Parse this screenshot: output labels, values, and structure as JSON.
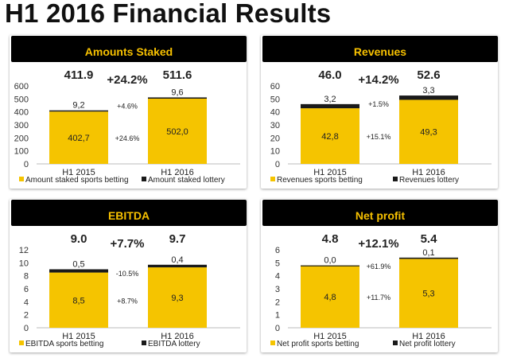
{
  "page": {
    "title": "H1 2016 Financial Results"
  },
  "colors": {
    "sports": "#f5c400",
    "lottery": "#1a1a1a",
    "header_bg": "#000000",
    "header_text": "#f7c100"
  },
  "panels": [
    {
      "id": "amounts-staked",
      "header": "Amounts Staked",
      "yticks": [
        "0",
        "100",
        "200",
        "300",
        "400",
        "500",
        "600"
      ],
      "ymax": 600,
      "bars": [
        {
          "label": "H1 2015",
          "total": "411.9",
          "sports": 402.7,
          "lottery": 9.2,
          "sports_label": "402,7",
          "lottery_label": "9,2"
        },
        {
          "label": "H1 2016",
          "total": "511.6",
          "sports": 502.0,
          "lottery": 9.6,
          "sports_label": "502,0",
          "lottery_label": "9,6"
        }
      ],
      "growth": "+24.2%",
      "lottery_change": "+4.6%",
      "sports_change": "+24.6%",
      "legend": [
        "Amount staked sports betting",
        "Amount staked lottery"
      ]
    },
    {
      "id": "revenues",
      "header": "Revenues",
      "yticks": [
        "0",
        "10",
        "20",
        "30",
        "40",
        "50",
        "60"
      ],
      "ymax": 60,
      "bars": [
        {
          "label": "H1 2015",
          "total": "46.0",
          "sports": 42.8,
          "lottery": 3.2,
          "sports_label": "42,8",
          "lottery_label": "3,2"
        },
        {
          "label": "H1 2016",
          "total": "52.6",
          "sports": 49.3,
          "lottery": 3.3,
          "sports_label": "49,3",
          "lottery_label": "3,3"
        }
      ],
      "growth": "+14.2%",
      "lottery_change": "+1.5%",
      "sports_change": "+15.1%",
      "legend": [
        "Revenues sports betting",
        "Revenues lottery"
      ]
    },
    {
      "id": "ebitda",
      "header": "EBITDA",
      "yticks": [
        "0",
        "2",
        "4",
        "6",
        "8",
        "10",
        "12"
      ],
      "ymax": 12,
      "bars": [
        {
          "label": "H1 2015",
          "total": "9.0",
          "sports": 8.5,
          "lottery": 0.5,
          "sports_label": "8,5",
          "lottery_label": "0,5"
        },
        {
          "label": "H1 2016",
          "total": "9.7",
          "sports": 9.3,
          "lottery": 0.4,
          "sports_label": "9,3",
          "lottery_label": "0,4"
        }
      ],
      "growth": "+7.7%",
      "lottery_change": "-10.5%",
      "sports_change": "+8.7%",
      "legend": [
        "EBITDA sports betting",
        "EBITDA lottery"
      ]
    },
    {
      "id": "net-profit",
      "header": "Net profit",
      "yticks": [
        "0",
        "1",
        "2",
        "3",
        "4",
        "5",
        "6"
      ],
      "ymax": 6,
      "bars": [
        {
          "label": "H1 2015",
          "total": "4.8",
          "sports": 4.8,
          "lottery": 0.0,
          "sports_label": "4,8",
          "lottery_label": "0,0"
        },
        {
          "label": "H1 2016",
          "total": "5.4",
          "sports": 5.3,
          "lottery": 0.1,
          "sports_label": "5,3",
          "lottery_label": "0,1"
        }
      ],
      "growth": "+12.1%",
      "lottery_change": "+61.9%",
      "sports_change": "+11.7%",
      "legend": [
        "Net profit sports betting",
        "Net profit lottery"
      ]
    }
  ],
  "chart_data": [
    {
      "type": "bar",
      "title": "Amounts Staked",
      "categories": [
        "H1 2015",
        "H1 2016"
      ],
      "series": [
        {
          "name": "Amount staked sports betting",
          "values": [
            402.7,
            502.0
          ]
        },
        {
          "name": "Amount staked lottery",
          "values": [
            9.2,
            9.6
          ]
        }
      ],
      "totals": [
        411.9,
        511.6
      ],
      "ylim": [
        0,
        600
      ],
      "stacked": true
    },
    {
      "type": "bar",
      "title": "Revenues",
      "categories": [
        "H1 2015",
        "H1 2016"
      ],
      "series": [
        {
          "name": "Revenues sports betting",
          "values": [
            42.8,
            49.3
          ]
        },
        {
          "name": "Revenues lottery",
          "values": [
            3.2,
            3.3
          ]
        }
      ],
      "totals": [
        46.0,
        52.6
      ],
      "ylim": [
        0,
        60
      ],
      "stacked": true
    },
    {
      "type": "bar",
      "title": "EBITDA",
      "categories": [
        "H1 2015",
        "H1 2016"
      ],
      "series": [
        {
          "name": "EBITDA sports betting",
          "values": [
            8.5,
            9.3
          ]
        },
        {
          "name": "EBITDA lottery",
          "values": [
            0.5,
            0.4
          ]
        }
      ],
      "totals": [
        9.0,
        9.7
      ],
      "ylim": [
        0,
        12
      ],
      "stacked": true
    },
    {
      "type": "bar",
      "title": "Net profit",
      "categories": [
        "H1 2015",
        "H1 2016"
      ],
      "series": [
        {
          "name": "Net profit sports betting",
          "values": [
            4.8,
            5.3
          ]
        },
        {
          "name": "Net profit lottery",
          "values": [
            0.0,
            0.1
          ]
        }
      ],
      "totals": [
        4.8,
        5.4
      ],
      "ylim": [
        0,
        6
      ],
      "stacked": true
    }
  ]
}
